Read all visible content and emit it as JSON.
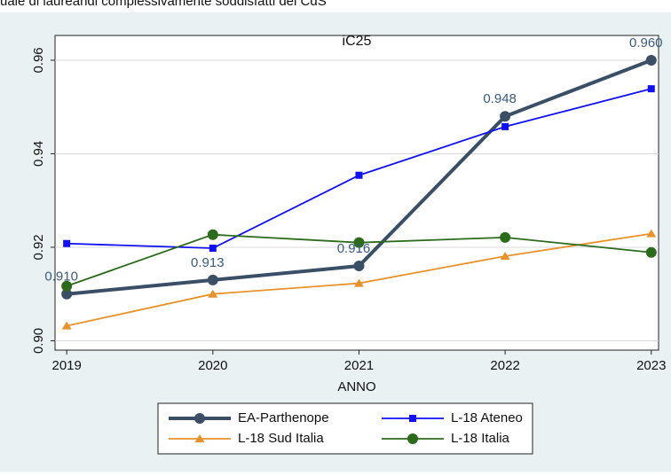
{
  "chart_data": {
    "type": "line",
    "header": "uale di laureandi complessivamente soddisfatti del CdS",
    "title": "iC25",
    "x_label": "ANNO",
    "x": [
      2019,
      2020,
      2021,
      2022,
      2023
    ],
    "xlim": [
      2018.92,
      2023.05
    ],
    "xticks": [
      2019,
      2020,
      2021,
      2022,
      2023
    ],
    "ylim": [
      0.898,
      0.9653
    ],
    "yticks": [
      {
        "value": 0.9,
        "label": "0.90"
      },
      {
        "value": 0.92,
        "label": "0.92"
      },
      {
        "value": 0.94,
        "label": "0.94"
      },
      {
        "value": 0.96,
        "label": "0.96"
      }
    ],
    "grid": true,
    "legend": "bottom",
    "series": [
      {
        "name": "EA-Parthenope",
        "color": "#3a4f66",
        "marker": "circle",
        "values": [
          0.91,
          0.913,
          0.916,
          0.948,
          0.96
        ],
        "value_labels": [
          "0.910",
          "0.913",
          "0.916",
          "0.948",
          "0.960"
        ]
      },
      {
        "name": "L-18 Ateneo",
        "color": "#1010f0",
        "marker": "square",
        "values": [
          0.9208,
          0.9198,
          0.9354,
          0.9458,
          0.9539
        ]
      },
      {
        "name": "L-18 Sud Italia",
        "color": "#e8922c",
        "marker": "triangle",
        "values": [
          0.9032,
          0.91,
          0.9123,
          0.9181,
          0.9229
        ]
      },
      {
        "name": "L-18 Italia",
        "color": "#2c6b1c",
        "marker": "circle",
        "values": [
          0.9117,
          0.9227,
          0.921,
          0.9221,
          0.9189
        ]
      }
    ]
  }
}
